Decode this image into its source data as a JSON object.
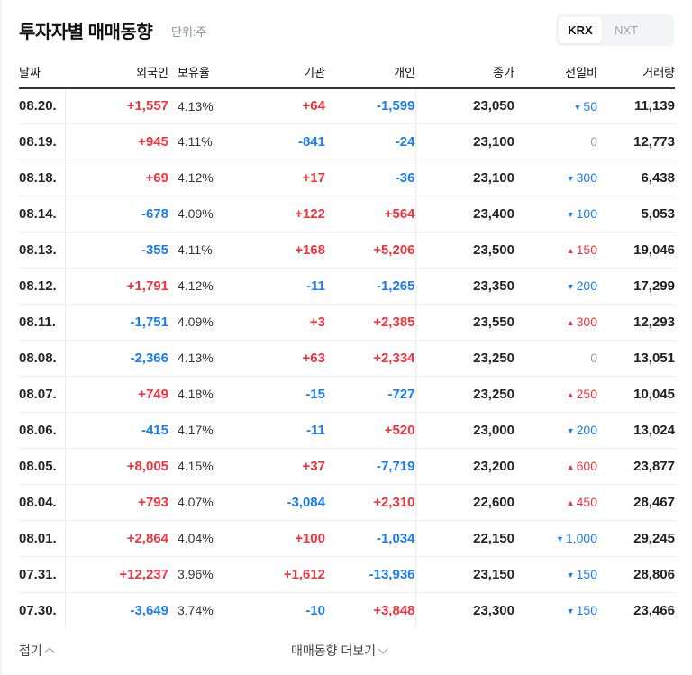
{
  "header": {
    "title": "투자자별 매매동향",
    "unit": "단위:주",
    "market_tabs": [
      {
        "label": "KRX",
        "active": true
      },
      {
        "label": "NXT",
        "active": false
      }
    ]
  },
  "colors": {
    "up": "#f0333d",
    "down": "#1a7cf0",
    "flat": "#9aa0a6"
  },
  "table": {
    "columns": [
      "날짜",
      "외국인",
      "보유율",
      "기관",
      "개인",
      "종가",
      "전일비",
      "거래량"
    ],
    "rows": [
      {
        "date": "08.20.",
        "foreign": "+1,557",
        "ratio": "4.13%",
        "inst": "+64",
        "indiv": "-1,599",
        "close": "23,050",
        "chg_dir": "down",
        "chg": "50",
        "vol": "11,139"
      },
      {
        "date": "08.19.",
        "foreign": "+945",
        "ratio": "4.11%",
        "inst": "-841",
        "indiv": "-24",
        "close": "23,100",
        "chg_dir": "flat",
        "chg": "0",
        "vol": "12,773"
      },
      {
        "date": "08.18.",
        "foreign": "+69",
        "ratio": "4.12%",
        "inst": "+17",
        "indiv": "-36",
        "close": "23,100",
        "chg_dir": "down",
        "chg": "300",
        "vol": "6,438"
      },
      {
        "date": "08.14.",
        "foreign": "-678",
        "ratio": "4.09%",
        "inst": "+122",
        "indiv": "+564",
        "close": "23,400",
        "chg_dir": "down",
        "chg": "100",
        "vol": "5,053"
      },
      {
        "date": "08.13.",
        "foreign": "-355",
        "ratio": "4.11%",
        "inst": "+168",
        "indiv": "+5,206",
        "close": "23,500",
        "chg_dir": "up",
        "chg": "150",
        "vol": "19,046"
      },
      {
        "date": "08.12.",
        "foreign": "+1,791",
        "ratio": "4.12%",
        "inst": "-11",
        "indiv": "-1,265",
        "close": "23,350",
        "chg_dir": "down",
        "chg": "200",
        "vol": "17,299"
      },
      {
        "date": "08.11.",
        "foreign": "-1,751",
        "ratio": "4.09%",
        "inst": "+3",
        "indiv": "+2,385",
        "close": "23,550",
        "chg_dir": "up",
        "chg": "300",
        "vol": "12,293"
      },
      {
        "date": "08.08.",
        "foreign": "-2,366",
        "ratio": "4.13%",
        "inst": "+63",
        "indiv": "+2,334",
        "close": "23,250",
        "chg_dir": "flat",
        "chg": "0",
        "vol": "13,051"
      },
      {
        "date": "08.07.",
        "foreign": "+749",
        "ratio": "4.18%",
        "inst": "-15",
        "indiv": "-727",
        "close": "23,250",
        "chg_dir": "up",
        "chg": "250",
        "vol": "10,045"
      },
      {
        "date": "08.06.",
        "foreign": "-415",
        "ratio": "4.17%",
        "inst": "-11",
        "indiv": "+520",
        "close": "23,000",
        "chg_dir": "down",
        "chg": "200",
        "vol": "13,024"
      },
      {
        "date": "08.05.",
        "foreign": "+8,005",
        "ratio": "4.15%",
        "inst": "+37",
        "indiv": "-7,719",
        "close": "23,200",
        "chg_dir": "up",
        "chg": "600",
        "vol": "23,877"
      },
      {
        "date": "08.04.",
        "foreign": "+793",
        "ratio": "4.07%",
        "inst": "-3,084",
        "indiv": "+2,310",
        "close": "22,600",
        "chg_dir": "up",
        "chg": "450",
        "vol": "28,467"
      },
      {
        "date": "08.01.",
        "foreign": "+2,864",
        "ratio": "4.04%",
        "inst": "+100",
        "indiv": "-1,034",
        "close": "22,150",
        "chg_dir": "down",
        "chg": "1,000",
        "vol": "29,245"
      },
      {
        "date": "07.31.",
        "foreign": "+12,237",
        "ratio": "3.96%",
        "inst": "+1,612",
        "indiv": "-13,936",
        "close": "23,150",
        "chg_dir": "down",
        "chg": "150",
        "vol": "28,806"
      },
      {
        "date": "07.30.",
        "foreign": "-3,649",
        "ratio": "3.74%",
        "inst": "-10",
        "indiv": "+3,848",
        "close": "23,300",
        "chg_dir": "down",
        "chg": "150",
        "vol": "23,466"
      }
    ]
  },
  "footer": {
    "fold_label": "접기",
    "more_label": "매매동향 더보기"
  },
  "icons": {
    "up_triangle": "▲",
    "down_triangle": "▼"
  }
}
